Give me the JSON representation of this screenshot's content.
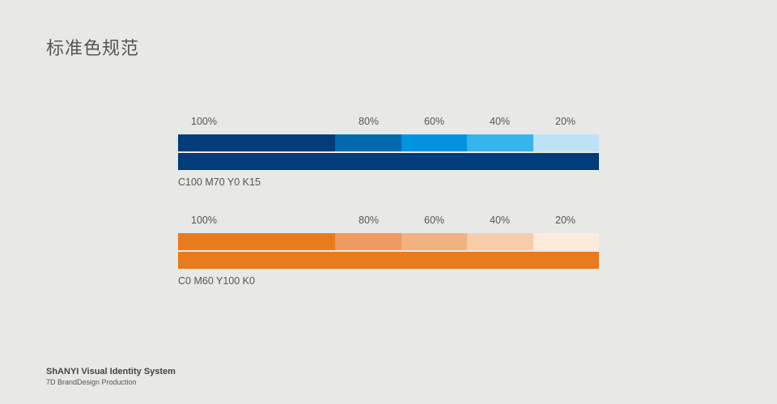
{
  "page": {
    "title": "标准色规范"
  },
  "palettes": [
    {
      "labels": [
        "100%",
        "80%",
        "60%",
        "40%",
        "20%"
      ],
      "tint_colors": [
        "#003d7a",
        "#006aad",
        "#0094e0",
        "#38b4ec",
        "#bde2f8"
      ],
      "main_color": "#003d7a",
      "spec": "C100 M70 Y0 K15"
    },
    {
      "labels": [
        "100%",
        "80%",
        "60%",
        "40%",
        "20%"
      ],
      "tint_colors": [
        "#e77b1e",
        "#ed9a63",
        "#f1b283",
        "#f6ccab",
        "#fcebdc"
      ],
      "main_color": "#e77b1e",
      "spec": "C0 M60 Y100 K0"
    }
  ],
  "footer": {
    "brand": "ShANYI Visual Identity System",
    "sub": "7D BrandDesign Production"
  }
}
